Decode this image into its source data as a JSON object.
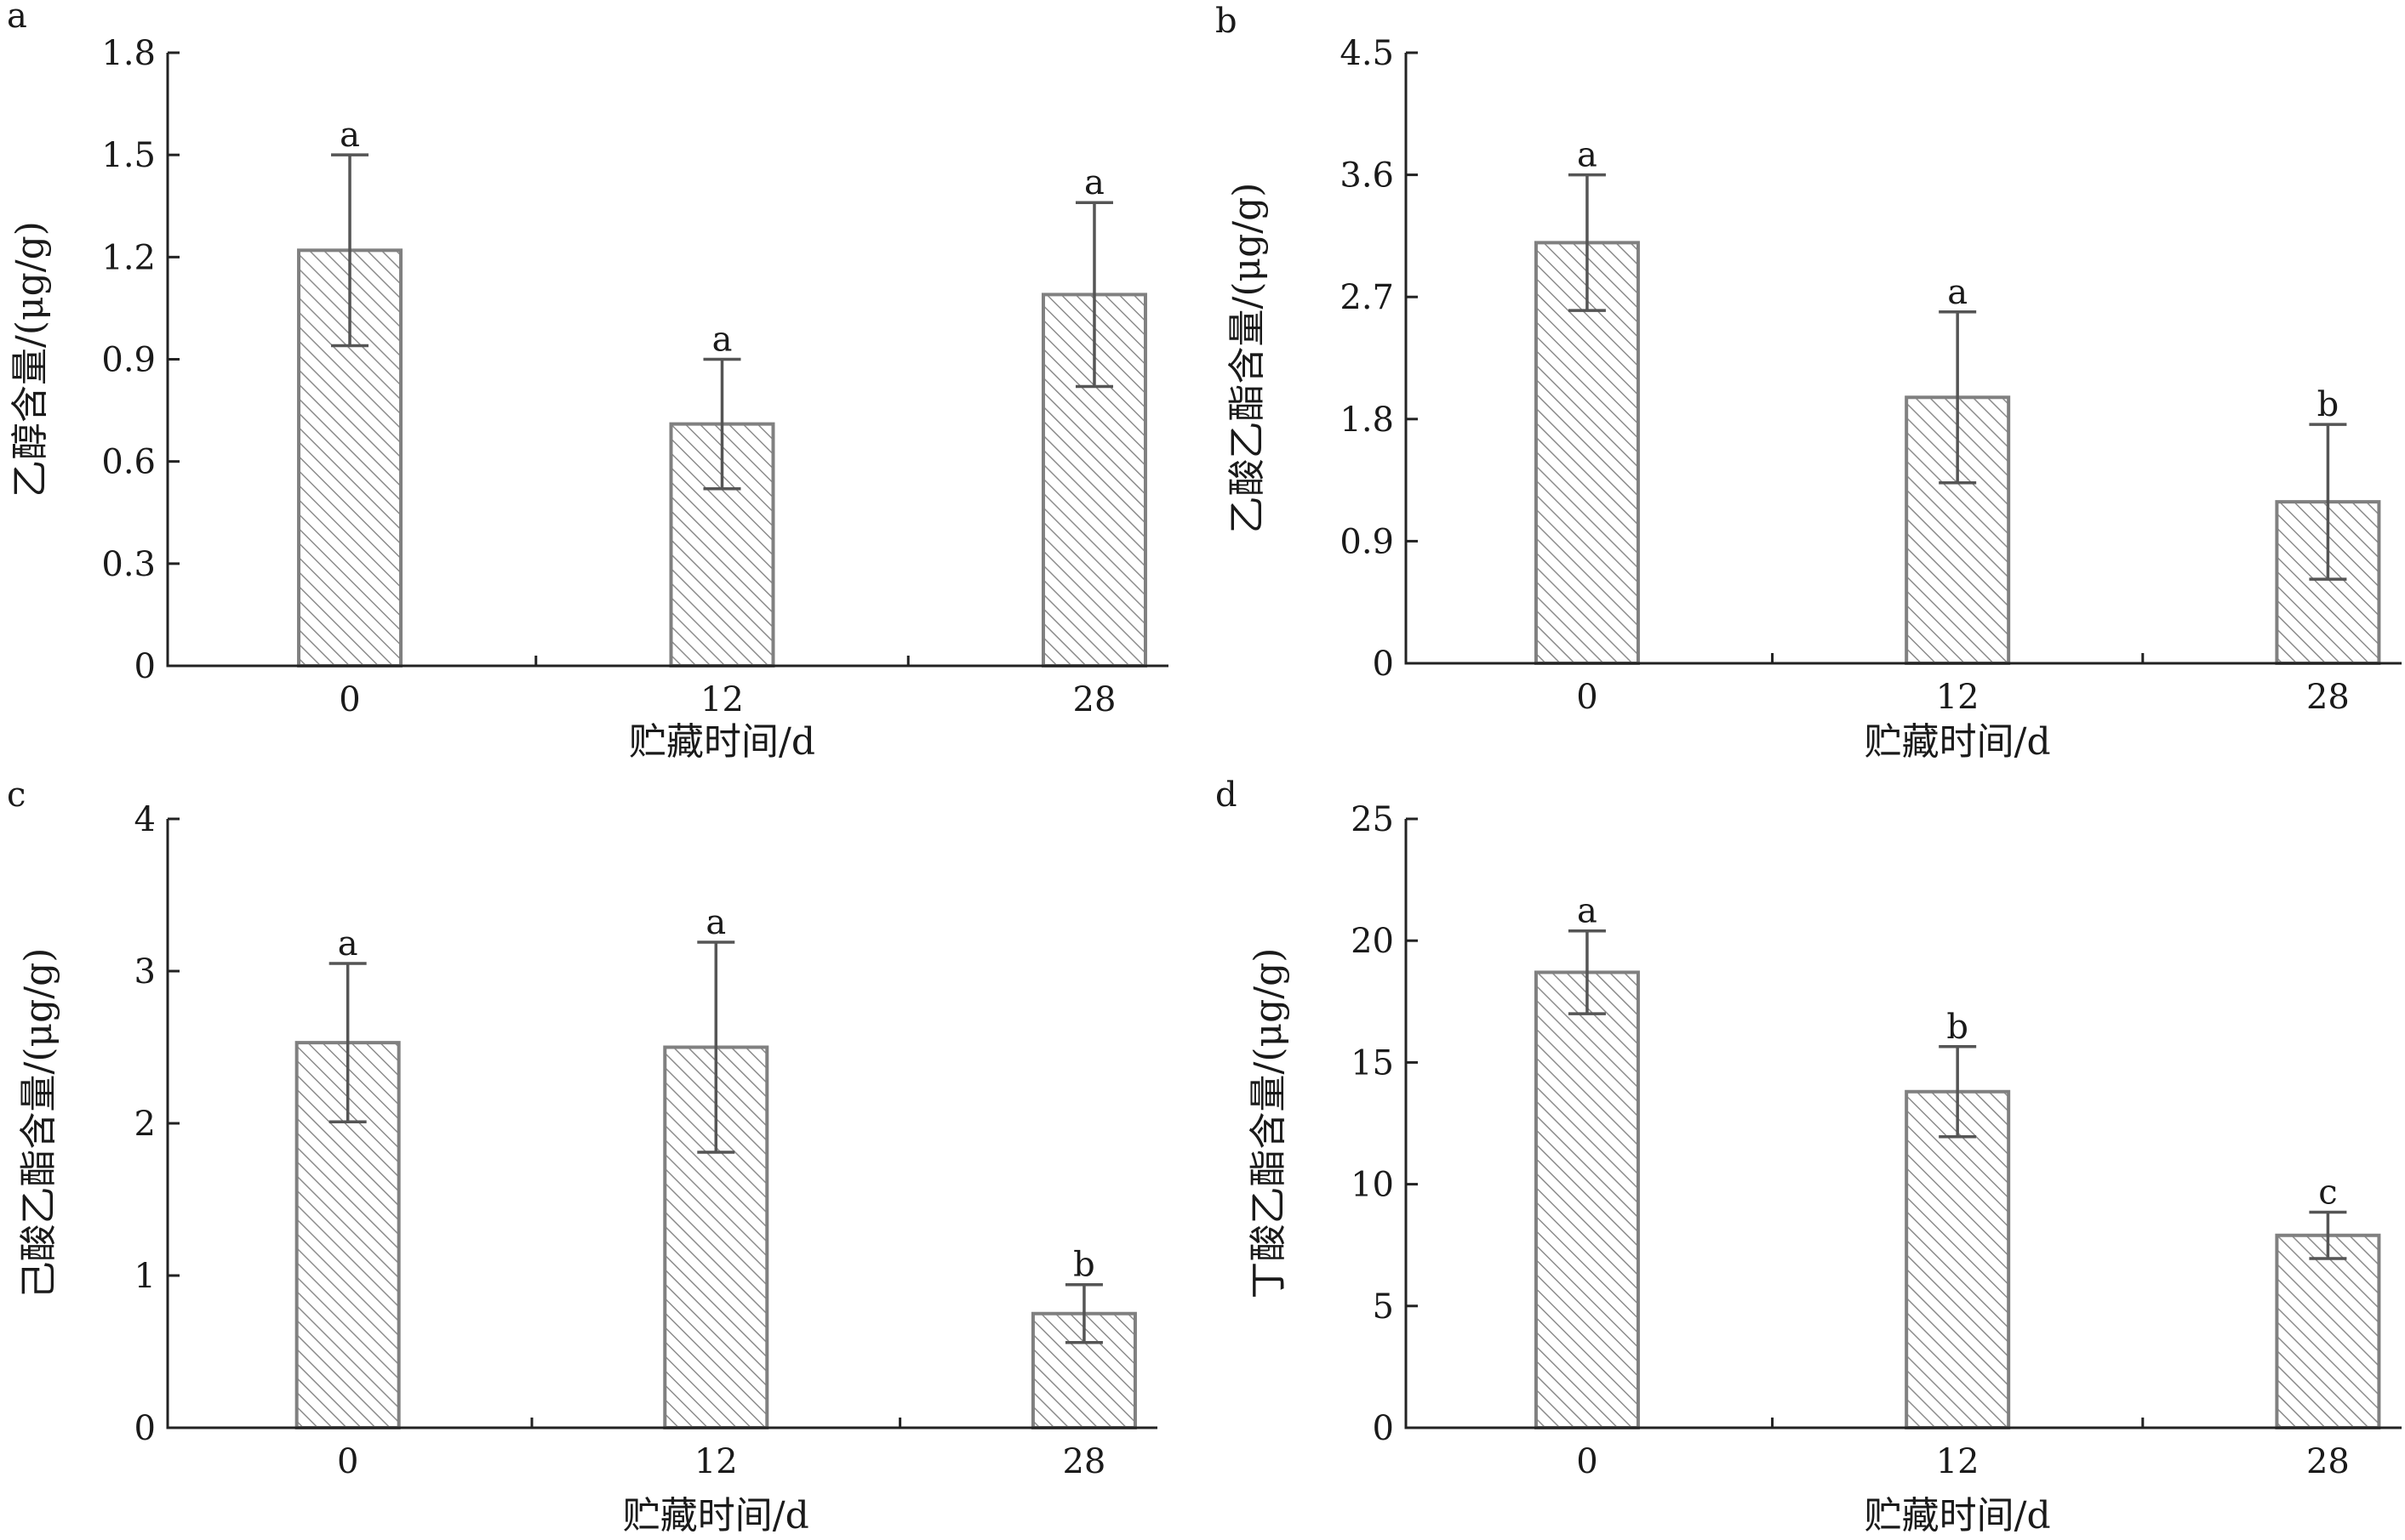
{
  "colors": {
    "bar_stroke": "#808080",
    "hatch_line": "#8c8c8c",
    "axis": "#222222",
    "error_bar": "#555555",
    "text": "#1a1a1a"
  },
  "chart_data": [
    {
      "panel": "a",
      "type": "bar",
      "categories": [
        "0",
        "12",
        "28"
      ],
      "values": [
        1.22,
        0.71,
        1.09
      ],
      "errors": [
        0.28,
        0.19,
        0.27
      ],
      "significance": [
        "a",
        "a",
        "a"
      ],
      "xlabel": "贮藏时间/d",
      "ylabel": "乙醇含量/(μg/g)",
      "ylim": [
        0,
        1.8
      ],
      "yticks": [
        "0",
        "0.3",
        "0.6",
        "0.9",
        "1.2",
        "1.5",
        "1.8"
      ],
      "ytick_values": [
        0,
        0.3,
        0.6,
        0.9,
        1.2,
        1.5,
        1.8
      ],
      "grid": false,
      "legend": "none",
      "bar_fill": "diagonal hatch"
    },
    {
      "panel": "b",
      "type": "bar",
      "categories": [
        "0",
        "12",
        "28"
      ],
      "values": [
        3.1,
        1.96,
        1.19
      ],
      "errors": [
        0.5,
        0.63,
        0.57
      ],
      "significance": [
        "a",
        "a",
        "b"
      ],
      "xlabel": "贮藏时间/d",
      "ylabel": "乙酸乙酯含量/(μg/g)",
      "ylim": [
        0,
        4.5
      ],
      "yticks": [
        "0",
        "0.9",
        "1.8",
        "2.7",
        "3.6",
        "4.5"
      ],
      "ytick_values": [
        0,
        0.9,
        1.8,
        2.7,
        3.6,
        4.5
      ],
      "grid": false,
      "legend": "none",
      "bar_fill": "diagonal hatch"
    },
    {
      "panel": "c",
      "type": "bar",
      "categories": [
        "0",
        "12",
        "28"
      ],
      "values": [
        2.53,
        2.5,
        0.75
      ],
      "errors": [
        0.52,
        0.69,
        0.19
      ],
      "significance": [
        "a",
        "a",
        "b"
      ],
      "xlabel": "贮藏时间/d",
      "ylabel": "己酸乙酯含量/(μg/g)",
      "ylim": [
        0,
        4
      ],
      "yticks": [
        "0",
        "1",
        "2",
        "3",
        "4"
      ],
      "ytick_values": [
        0,
        1,
        2,
        3,
        4
      ],
      "grid": false,
      "legend": "none",
      "bar_fill": "diagonal hatch"
    },
    {
      "panel": "d",
      "type": "bar",
      "categories": [
        "0",
        "12",
        "28"
      ],
      "values": [
        18.7,
        13.8,
        7.9
      ],
      "errors": [
        1.7,
        1.85,
        0.95
      ],
      "significance": [
        "a",
        "b",
        "c"
      ],
      "xlabel": "贮藏时间/d",
      "ylabel": "丁酸乙酯含量/(μg/g)",
      "ylim": [
        0,
        25
      ],
      "yticks": [
        "0",
        "5",
        "10",
        "15",
        "20",
        "25"
      ],
      "ytick_values": [
        0,
        5,
        10,
        15,
        20,
        25
      ],
      "grid": false,
      "legend": "none",
      "bar_fill": "diagonal hatch"
    }
  ]
}
